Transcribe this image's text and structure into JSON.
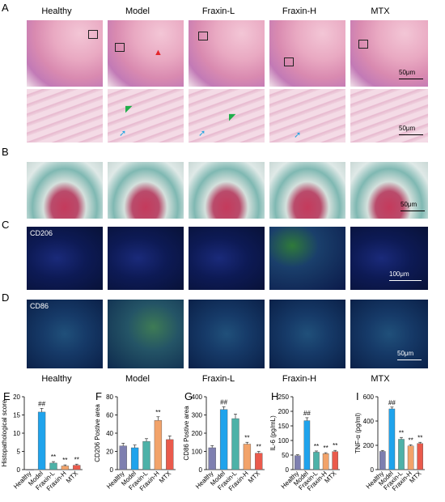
{
  "panel_letters": {
    "A": "A",
    "B": "B",
    "C": "C",
    "D": "D",
    "E": "E",
    "F": "F",
    "G": "G",
    "H": "H",
    "I": "I"
  },
  "groups": [
    "Healthy",
    "Model",
    "Fraxin-L",
    "Fraxin-H",
    "MTX"
  ],
  "image_labels": {
    "cd206": "CD206",
    "cd86": "CD86"
  },
  "scalebars": {
    "a_top": "50μm",
    "a_bottom": "50μm",
    "b": "50μm",
    "c": "100μm",
    "d": "50μm"
  },
  "colors": {
    "Healthy": "#7e7fb0",
    "Model": "#1fa3ec",
    "Fraxin-L": "#4db2a8",
    "Fraxin-H": "#f2a36a",
    "MTX": "#ea5a4c"
  },
  "chart_data": [
    {
      "panel": "E",
      "type": "bar",
      "categories": [
        "Healthy",
        "Model",
        "Fraxin-L",
        "Fraxin-H",
        "MTX"
      ],
      "values": [
        0,
        15.8,
        1.8,
        1.0,
        1.2
      ],
      "errors": [
        0,
        1.0,
        0.4,
        0.3,
        0.3
      ],
      "annotations": [
        "",
        "##",
        "**",
        "**",
        "**"
      ],
      "ylabel": "Histopathological score",
      "ylim": [
        0,
        20
      ],
      "yticks": [
        0,
        5,
        10,
        15,
        20
      ]
    },
    {
      "panel": "F",
      "type": "bar",
      "categories": [
        "Healthy",
        "Model",
        "Fraxin-L",
        "Fraxin-H",
        "MTX"
      ],
      "values": [
        26,
        24,
        31,
        54,
        33
      ],
      "errors": [
        3,
        3,
        3,
        4,
        4
      ],
      "annotations": [
        "",
        "",
        "",
        "**",
        ""
      ],
      "ylabel": "CD206 Postive area",
      "ylim": [
        0,
        80
      ],
      "yticks": [
        0,
        20,
        40,
        60,
        80
      ]
    },
    {
      "panel": "G",
      "type": "bar",
      "categories": [
        "Healthy",
        "Model",
        "Fraxin-L",
        "Fraxin-H",
        "MTX"
      ],
      "values": [
        120,
        330,
        280,
        140,
        90
      ],
      "errors": [
        12,
        15,
        25,
        10,
        10
      ],
      "annotations": [
        "",
        "##",
        "",
        "**",
        "**"
      ],
      "ylabel": "CD86 Postive area",
      "ylim": [
        0,
        400
      ],
      "yticks": [
        0,
        100,
        200,
        300,
        400
      ]
    },
    {
      "panel": "H",
      "type": "bar",
      "categories": [
        "Healthy",
        "Model",
        "Fraxin-L",
        "Fraxin-H",
        "MTX"
      ],
      "values": [
        48,
        168,
        60,
        55,
        62
      ],
      "errors": [
        3,
        10,
        4,
        3,
        4
      ],
      "annotations": [
        "",
        "##",
        "**",
        "**",
        "**"
      ],
      "ylabel": "IL-6 (pg/mL)",
      "ylim": [
        0,
        250
      ],
      "yticks": [
        0,
        50,
        100,
        150,
        200,
        250
      ]
    },
    {
      "panel": "I",
      "type": "bar",
      "categories": [
        "Healthy",
        "Model",
        "Fraxin-L",
        "Fraxin-H",
        "MTX"
      ],
      "values": [
        150,
        500,
        250,
        195,
        215
      ],
      "errors": [
        8,
        15,
        15,
        10,
        10
      ],
      "annotations": [
        "",
        "##",
        "**",
        "**",
        "**"
      ],
      "ylabel": "TNF-α (pg/ml)",
      "ylim": [
        0,
        600
      ],
      "yticks": [
        0,
        200,
        400,
        600
      ]
    }
  ]
}
